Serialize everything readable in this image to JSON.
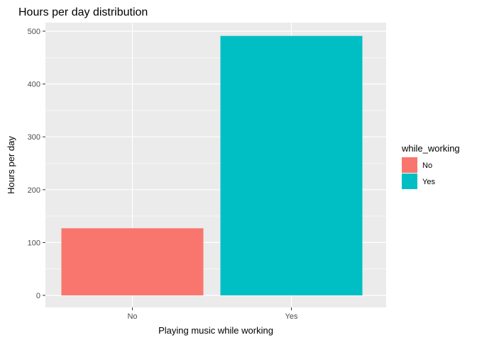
{
  "chart_data": {
    "type": "bar",
    "title": "Hours per day distribution",
    "xlabel": "Playing music while working",
    "ylabel": "Hours per day",
    "categories": [
      "No",
      "Yes"
    ],
    "values": [
      127,
      491
    ],
    "ylim": [
      0,
      515
    ],
    "yticks": [
      0,
      100,
      200,
      300,
      400,
      500
    ],
    "yticks_minor": [
      50,
      150,
      250,
      350,
      450
    ],
    "grid": true,
    "legend": {
      "title": "while_working",
      "position": "right",
      "entries": [
        {
          "label": "No",
          "color": "#F8766D"
        },
        {
          "label": "Yes",
          "color": "#00BFC4"
        }
      ]
    },
    "colors": {
      "panel": "#EBEBEB",
      "grid": "#FFFFFF",
      "bars": [
        "#F8766D",
        "#00BFC4"
      ]
    }
  }
}
